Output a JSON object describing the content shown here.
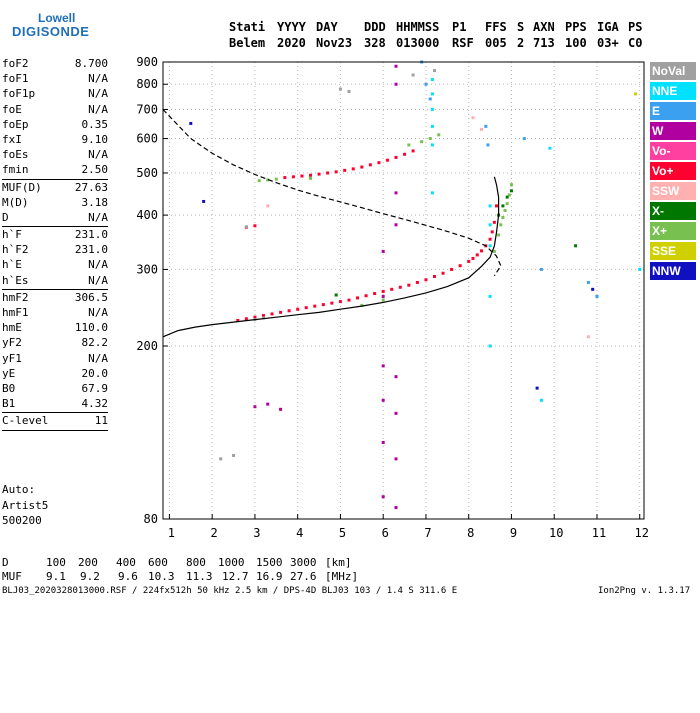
{
  "logo": {
    "line1": "Lowell",
    "line2": "DIGISONDE"
  },
  "header": {
    "labels": [
      "Stati",
      "YYYY",
      "DAY",
      "DDD",
      "HHMMSS",
      "P1",
      "FFS",
      "S",
      "AXN",
      "PPS",
      "IGA",
      "PS"
    ],
    "values": [
      "Belem",
      "2020",
      "Nov23",
      "328",
      "013000",
      "RSF",
      "005",
      "2",
      "713",
      "100",
      "03+",
      "C0"
    ]
  },
  "params": {
    "group1": [
      {
        "name": "foF2",
        "value": "8.700"
      },
      {
        "name": "foF1",
        "value": "N/A"
      },
      {
        "name": "foF1p",
        "value": "N/A"
      },
      {
        "name": "foE",
        "value": "N/A"
      },
      {
        "name": "foEp",
        "value": "0.35"
      },
      {
        "name": "fxI",
        "value": "9.10"
      },
      {
        "name": "foEs",
        "value": "N/A"
      },
      {
        "name": "fmin",
        "value": "2.50"
      }
    ],
    "group2": [
      {
        "name": "MUF(D)",
        "value": "27.63"
      },
      {
        "name": "M(D)",
        "value": "3.18"
      },
      {
        "name": "D",
        "value": "N/A"
      }
    ],
    "group3": [
      {
        "name": "h`F",
        "value": "231.0"
      },
      {
        "name": "h`F2",
        "value": "231.0"
      },
      {
        "name": "h`E",
        "value": "N/A"
      },
      {
        "name": "h`Es",
        "value": "N/A"
      }
    ],
    "group4": [
      {
        "name": "hmF2",
        "value": "306.5"
      },
      {
        "name": "hmF1",
        "value": "N/A"
      },
      {
        "name": "hmE",
        "value": "110.0"
      },
      {
        "name": "yF2",
        "value": "82.2"
      },
      {
        "name": "yF1",
        "value": "N/A"
      },
      {
        "name": "yE",
        "value": "20.0"
      },
      {
        "name": "B0",
        "value": "67.9"
      },
      {
        "name": "B1",
        "value": "4.32"
      }
    ],
    "group5": [
      {
        "name": "C-level",
        "value": "11"
      }
    ]
  },
  "auto_block": {
    "line1": "Auto:",
    "line2": "Artist5",
    "line3": "500200"
  },
  "legend": [
    {
      "label": "NoVal",
      "color": "#a0a0a0"
    },
    {
      "label": "NNE",
      "color": "#00e0ff"
    },
    {
      "label": "E",
      "color": "#3ca0f0"
    },
    {
      "label": "W",
      "color": "#b000a0"
    },
    {
      "label": "Vo-",
      "color": "#ff40a0"
    },
    {
      "label": "Vo+",
      "color": "#ff0030"
    },
    {
      "label": "SSW",
      "color": "#ffb0b0"
    },
    {
      "label": "X-",
      "color": "#007800"
    },
    {
      "label": "X+",
      "color": "#78c050"
    },
    {
      "label": "SSE",
      "color": "#d0d000"
    },
    {
      "label": "NNW",
      "color": "#1010c0"
    }
  ],
  "muf_table": {
    "row1_label": "D",
    "row1_values": [
      "100",
      "200",
      "400",
      "600",
      "800",
      "1000",
      "1500",
      "3000"
    ],
    "row1_unit": "[km]",
    "row2_label": "MUF",
    "row2_values": [
      "9.1",
      "9.2",
      "9.6",
      "10.3",
      "11.3",
      "12.7",
      "16.9",
      "27.6"
    ],
    "row2_unit": "[MHz]"
  },
  "footer": {
    "left": "BLJ03_2020328013000.RSF / 224fx512h 50 kHz 2.5 km / DPS-4D BLJ03 103 / 1.4 S 311.6 E",
    "right": "Ion2Png v. 1.3.17"
  },
  "chart_data": {
    "type": "scatter",
    "title": "",
    "xlabel": "",
    "ylabel": "",
    "xlim": [
      0.85,
      12.1
    ],
    "ylim": [
      80,
      900
    ],
    "y_scale": "log",
    "xticks": [
      1,
      2,
      3,
      4,
      5,
      6,
      7,
      8,
      9,
      10,
      11,
      12
    ],
    "yticks": [
      80,
      200,
      300,
      400,
      500,
      600,
      700,
      800,
      900
    ],
    "grid": true,
    "legend_position": "right",
    "fitted_trace": {
      "x": [
        0.85,
        1.2,
        1.6,
        2.0,
        2.5,
        3.0,
        3.5,
        4.0,
        4.5,
        5.0,
        5.5,
        6.0,
        6.5,
        7.0,
        7.5,
        8.0,
        8.3,
        8.5,
        8.6,
        8.65,
        8.7,
        8.7,
        8.65,
        8.6
      ],
      "y": [
        210,
        217,
        221,
        224,
        227,
        230,
        233,
        236,
        239,
        243,
        247,
        252,
        258,
        265,
        274,
        287,
        305,
        320,
        340,
        365,
        400,
        440,
        470,
        490
      ]
    },
    "profile_trace": {
      "x": [
        0.85,
        1.5,
        2.0,
        2.5,
        3.0,
        3.5,
        4.0,
        4.5,
        5.0,
        5.5,
        6.0,
        6.5,
        7.0,
        7.5,
        8.0,
        8.4,
        8.65,
        8.75,
        8.6
      ],
      "y": [
        700,
        600,
        555,
        522,
        496,
        475,
        457,
        442,
        429,
        416,
        403,
        391,
        379,
        367,
        354,
        340,
        322,
        306,
        290
      ]
    },
    "series": [
      {
        "name": "Vo+",
        "color": "#ff0030",
        "x": [
          2.6,
          2.8,
          3.0,
          3.2,
          3.4,
          3.6,
          3.8,
          4.0,
          4.2,
          4.4,
          4.6,
          4.8,
          5.0,
          5.2,
          5.4,
          5.6,
          5.8,
          6.0,
          6.2,
          6.4,
          6.6,
          6.8,
          7.0,
          7.2,
          7.4,
          7.6,
          7.8,
          8.0,
          8.1,
          8.2,
          8.3,
          8.4,
          8.5,
          8.55,
          8.6,
          8.65,
          3.7,
          3.9,
          4.1,
          4.3,
          4.5,
          4.7,
          4.9,
          5.1,
          5.3,
          5.5,
          5.7,
          5.9,
          6.1,
          6.3,
          6.5,
          6.7,
          2.8,
          3.0
        ],
        "y": [
          229,
          231,
          233,
          235,
          237,
          239,
          241,
          243,
          245,
          247,
          249,
          251,
          253,
          255,
          258,
          261,
          264,
          267,
          270,
          273,
          276,
          280,
          284,
          289,
          294,
          300,
          306,
          313,
          318,
          324,
          331,
          340,
          352,
          366,
          385,
          420,
          488,
          490,
          492,
          494,
          497,
          500,
          503,
          507,
          511,
          516,
          522,
          528,
          535,
          543,
          552,
          562,
          375,
          378
        ]
      },
      {
        "name": "X+",
        "color": "#78c050",
        "x": [
          8.6,
          8.7,
          8.75,
          8.8,
          8.85,
          8.9,
          8.95,
          9.0,
          3.1,
          3.3,
          3.5,
          4.3,
          5.5,
          6.0,
          6.6,
          6.9,
          7.1,
          7.3
        ],
        "y": [
          330,
          360,
          380,
          395,
          410,
          425,
          445,
          470,
          480,
          482,
          484,
          486,
          248,
          255,
          580,
          590,
          600,
          612
        ]
      },
      {
        "name": "W",
        "color": "#b000a0",
        "x": [
          6.0,
          6.0,
          6.0,
          6.0,
          6.0,
          6.0,
          6.3,
          6.3,
          6.3,
          6.3,
          6.3,
          6.3,
          6.3,
          6.3,
          3.0,
          3.3,
          3.6
        ],
        "y": [
          90,
          120,
          150,
          180,
          260,
          330,
          85,
          110,
          140,
          170,
          380,
          450,
          800,
          880,
          145,
          147,
          143
        ]
      },
      {
        "name": "NNE",
        "color": "#00e0ff",
        "x": [
          7.15,
          7.15,
          7.15,
          7.15,
          7.15,
          7.15,
          8.5,
          8.5,
          8.5,
          8.5,
          8.5,
          9.7,
          9.9,
          11.0,
          12.0
        ],
        "y": [
          820,
          760,
          700,
          640,
          580,
          450,
          420,
          380,
          340,
          260,
          200,
          150,
          570,
          260,
          300
        ]
      },
      {
        "name": "E",
        "color": "#3ca0f0",
        "x": [
          6.9,
          7.0,
          7.1,
          8.4,
          8.45,
          9.3,
          9.7,
          10.8,
          11.0
        ],
        "y": [
          900,
          800,
          740,
          640,
          580,
          600,
          300,
          280,
          260
        ]
      },
      {
        "name": "X-",
        "color": "#007800",
        "x": [
          8.7,
          8.8,
          8.9,
          9.0,
          10.5,
          4.9
        ],
        "y": [
          400,
          420,
          440,
          455,
          340,
          262
        ]
      },
      {
        "name": "NNW",
        "color": "#1010c0",
        "x": [
          1.5,
          1.8,
          10.9,
          9.6
        ],
        "y": [
          650,
          430,
          270,
          160
        ]
      },
      {
        "name": "SSW",
        "color": "#ffb0b0",
        "x": [
          8.3,
          8.1,
          3.3,
          10.8
        ],
        "y": [
          630,
          670,
          420,
          210
        ]
      },
      {
        "name": "NoVal",
        "color": "#a0a0a0",
        "x": [
          3.0,
          3.2,
          2.8,
          5.0,
          5.2,
          6.7,
          7.2,
          2.2,
          2.5
        ],
        "y": [
          230,
          232,
          376,
          780,
          770,
          840,
          860,
          110,
          112
        ]
      },
      {
        "name": "SSE",
        "color": "#d0d000",
        "x": [
          11.9
        ],
        "y": [
          760
        ]
      }
    ]
  }
}
